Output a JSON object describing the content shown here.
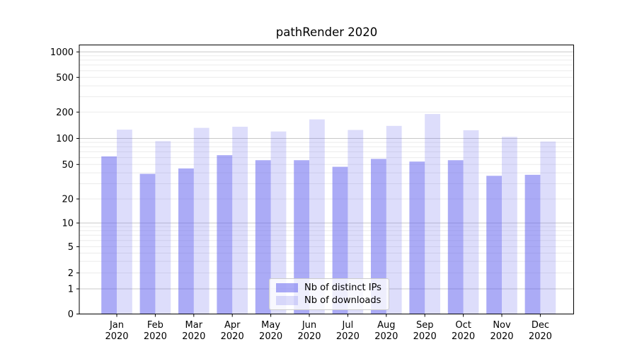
{
  "title": "pathRender 2020",
  "chart_data": {
    "type": "bar",
    "title": "pathRender 2020",
    "scale": "symlog",
    "grid": true,
    "legend_position": "lower center",
    "background_color": "#ffffff",
    "major_grid_color": "#c8c8c8",
    "minor_grid_color": "#ebebeb",
    "spine_color": "#000000",
    "text_color": "#000000",
    "base_bar_color": "#6666ee",
    "y_ticks": [
      0,
      1,
      2,
      5,
      10,
      20,
      50,
      100,
      200,
      500,
      1000
    ],
    "ylim": [
      0,
      1200
    ],
    "categories": [
      {
        "month": "Jan",
        "year": "2020"
      },
      {
        "month": "Feb",
        "year": "2020"
      },
      {
        "month": "Mar",
        "year": "2020"
      },
      {
        "month": "Apr",
        "year": "2020"
      },
      {
        "month": "May",
        "year": "2020"
      },
      {
        "month": "Jun",
        "year": "2020"
      },
      {
        "month": "Jul",
        "year": "2020"
      },
      {
        "month": "Aug",
        "year": "2020"
      },
      {
        "month": "Sep",
        "year": "2020"
      },
      {
        "month": "Oct",
        "year": "2020"
      },
      {
        "month": "Nov",
        "year": "2020"
      },
      {
        "month": "Dec",
        "year": "2020"
      }
    ],
    "series": [
      {
        "name": "Nb of distinct IPs",
        "color": "rgba(102,102,238,0.55)",
        "values": [
          62,
          39,
          45,
          64,
          56,
          56,
          47,
          58,
          54,
          56,
          37,
          38
        ]
      },
      {
        "name": "Nb of downloads",
        "color": "rgba(102,102,238,0.22)",
        "values": [
          126,
          93,
          132,
          136,
          120,
          165,
          125,
          139,
          190,
          124,
          104,
          92
        ]
      }
    ]
  },
  "legend": {
    "items": [
      {
        "label": "Nb of distinct IPs"
      },
      {
        "label": "Nb of downloads"
      }
    ]
  }
}
